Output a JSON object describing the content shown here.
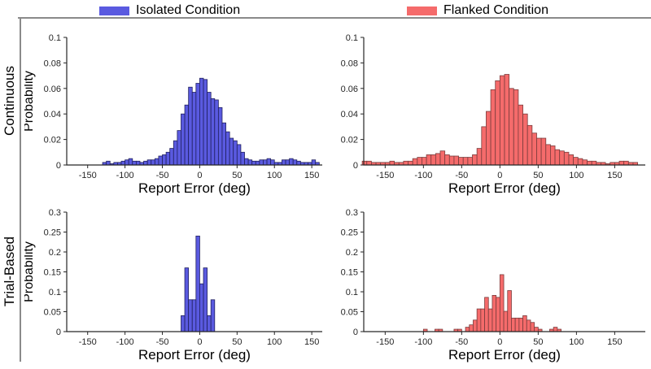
{
  "legend": {
    "items": [
      {
        "label": "Isolated Condition",
        "color": "#5a5ae0"
      },
      {
        "label": "Flanked Condition",
        "color": "#f56b6b"
      }
    ]
  },
  "row_labels": {
    "top": "Continuous",
    "bottom": "Trial-Based"
  },
  "axis_color": "#262626",
  "chart_data": [
    {
      "type": "bar",
      "row": "Continuous",
      "condition": "Isolated Condition",
      "xlabel": "Report Error (deg)",
      "ylabel": "Probability",
      "xlim": [
        -178,
        164
      ],
      "ylim": [
        0,
        0.1
      ],
      "xticks": [
        -150,
        -100,
        -50,
        0,
        50,
        100,
        150
      ],
      "yticks": [
        0,
        0.02,
        0.04,
        0.06,
        0.08,
        0.1
      ],
      "grid": false,
      "bar_color": "#5a5ae0",
      "edge_color": "#20205f",
      "bin_width": 5,
      "bins": [
        [
          -127.5,
          0.002
        ],
        [
          -122.5,
          0.003
        ],
        [
          -117.5,
          0.001
        ],
        [
          -112.5,
          0.002
        ],
        [
          -107.5,
          0.002
        ],
        [
          -102.5,
          0.003
        ],
        [
          -97.5,
          0.004
        ],
        [
          -92.5,
          0.005
        ],
        [
          -87.5,
          0.003
        ],
        [
          -82.5,
          0.003
        ],
        [
          -77.5,
          0.002
        ],
        [
          -72.5,
          0.003
        ],
        [
          -67.5,
          0.004
        ],
        [
          -62.5,
          0.004
        ],
        [
          -57.5,
          0.005
        ],
        [
          -52.5,
          0.007
        ],
        [
          -47.5,
          0.008
        ],
        [
          -42.5,
          0.01
        ],
        [
          -37.5,
          0.013
        ],
        [
          -32.5,
          0.019
        ],
        [
          -27.5,
          0.027
        ],
        [
          -22.5,
          0.04
        ],
        [
          -17.5,
          0.047
        ],
        [
          -12.5,
          0.061
        ],
        [
          -7.5,
          0.057
        ],
        [
          -2.5,
          0.064
        ],
        [
          2.5,
          0.068
        ],
        [
          7.5,
          0.067
        ],
        [
          12.5,
          0.057
        ],
        [
          17.5,
          0.052
        ],
        [
          22.5,
          0.051
        ],
        [
          27.5,
          0.045
        ],
        [
          32.5,
          0.033
        ],
        [
          37.5,
          0.026
        ],
        [
          42.5,
          0.021
        ],
        [
          47.5,
          0.019
        ],
        [
          52.5,
          0.016
        ],
        [
          57.5,
          0.01
        ],
        [
          62.5,
          0.005
        ],
        [
          67.5,
          0.004
        ],
        [
          72.5,
          0.003
        ],
        [
          77.5,
          0.003
        ],
        [
          82.5,
          0.004
        ],
        [
          87.5,
          0.004
        ],
        [
          92.5,
          0.005
        ],
        [
          97.5,
          0.004
        ],
        [
          102.5,
          0.002
        ],
        [
          107.5,
          0.002
        ],
        [
          112.5,
          0.004
        ],
        [
          117.5,
          0.004
        ],
        [
          122.5,
          0.005
        ],
        [
          127.5,
          0.004
        ],
        [
          132.5,
          0.003
        ],
        [
          137.5,
          0.002
        ],
        [
          142.5,
          0.002
        ],
        [
          147.5,
          0.002
        ],
        [
          152.5,
          0.004
        ],
        [
          157.5,
          0.002
        ]
      ]
    },
    {
      "type": "bar",
      "row": "Continuous",
      "condition": "Flanked Condition",
      "xlabel": "Report Error (deg)",
      "ylabel": "",
      "xlim": [
        -178,
        190
      ],
      "ylim": [
        0,
        0.1
      ],
      "xticks": [
        -150,
        -100,
        -50,
        0,
        50,
        100,
        150
      ],
      "yticks": [
        0,
        0.02,
        0.04,
        0.06,
        0.08,
        0.1
      ],
      "grid": false,
      "bar_color": "#f56b6b",
      "edge_color": "#7a3c3c",
      "bin_width": 6,
      "bins": [
        [
          -177,
          0.003
        ],
        [
          -171,
          0.003
        ],
        [
          -165,
          0.002
        ],
        [
          -159,
          0.002
        ],
        [
          -153,
          0.002
        ],
        [
          -147,
          0.002
        ],
        [
          -141,
          0.003
        ],
        [
          -135,
          0.002
        ],
        [
          -129,
          0.002
        ],
        [
          -123,
          0.003
        ],
        [
          -117,
          0.003
        ],
        [
          -111,
          0.005
        ],
        [
          -105,
          0.006
        ],
        [
          -99,
          0.006
        ],
        [
          -93,
          0.008
        ],
        [
          -87,
          0.008
        ],
        [
          -81,
          0.009
        ],
        [
          -75,
          0.011
        ],
        [
          -69,
          0.008
        ],
        [
          -63,
          0.007
        ],
        [
          -57,
          0.007
        ],
        [
          -51,
          0.006
        ],
        [
          -45,
          0.006
        ],
        [
          -39,
          0.006
        ],
        [
          -33,
          0.008
        ],
        [
          -27,
          0.013
        ],
        [
          -21,
          0.03
        ],
        [
          -15,
          0.042
        ],
        [
          -9,
          0.059
        ],
        [
          -3,
          0.066
        ],
        [
          3,
          0.07
        ],
        [
          9,
          0.071
        ],
        [
          15,
          0.06
        ],
        [
          21,
          0.059
        ],
        [
          27,
          0.047
        ],
        [
          33,
          0.04
        ],
        [
          39,
          0.031
        ],
        [
          45,
          0.025
        ],
        [
          51,
          0.021
        ],
        [
          57,
          0.021
        ],
        [
          63,
          0.016
        ],
        [
          69,
          0.015
        ],
        [
          75,
          0.012
        ],
        [
          81,
          0.011
        ],
        [
          87,
          0.01
        ],
        [
          93,
          0.008
        ],
        [
          99,
          0.006
        ],
        [
          105,
          0.005
        ],
        [
          111,
          0.004
        ],
        [
          117,
          0.003
        ],
        [
          123,
          0.003
        ],
        [
          129,
          0.002
        ],
        [
          135,
          0.002
        ],
        [
          141,
          0.001
        ],
        [
          147,
          0.002
        ],
        [
          153,
          0.002
        ],
        [
          159,
          0.003
        ],
        [
          165,
          0.003
        ],
        [
          171,
          0.002
        ],
        [
          177,
          0.002
        ]
      ]
    },
    {
      "type": "bar",
      "row": "Trial-Based",
      "condition": "Isolated Condition",
      "xlabel": "Report Error (deg)",
      "ylabel": "Probability",
      "xlim": [
        -178,
        164
      ],
      "ylim": [
        0,
        0.3
      ],
      "xticks": [
        -150,
        -100,
        -50,
        0,
        50,
        100,
        150
      ],
      "yticks": [
        0,
        0.05,
        0.1,
        0.15,
        0.2,
        0.25,
        0.3
      ],
      "grid": false,
      "bar_color": "#5a5ae0",
      "edge_color": "#20205f",
      "bin_width": 5,
      "bins": [
        [
          -22.5,
          0.04
        ],
        [
          -17.5,
          0.16
        ],
        [
          -12.5,
          0.08
        ],
        [
          -7.5,
          0.08
        ],
        [
          -2.5,
          0.24
        ],
        [
          2.5,
          0.12
        ],
        [
          7.5,
          0.16
        ],
        [
          12.5,
          0.04
        ],
        [
          17.5,
          0.08
        ]
      ]
    },
    {
      "type": "bar",
      "row": "Trial-Based",
      "condition": "Flanked Condition",
      "xlabel": "Report Error (deg)",
      "ylabel": "",
      "xlim": [
        -178,
        190
      ],
      "ylim": [
        0,
        0.3
      ],
      "xticks": [
        -150,
        -100,
        -50,
        0,
        50,
        100,
        150
      ],
      "yticks": [
        0,
        0.05,
        0.1,
        0.15,
        0.2,
        0.25,
        0.3
      ],
      "grid": false,
      "bar_color": "#f56b6b",
      "edge_color": "#7a3c3c",
      "bin_width": 5,
      "bins": [
        [
          -97.5,
          0.006
        ],
        [
          -82.5,
          0.006
        ],
        [
          -77.5,
          0.006
        ],
        [
          -57.5,
          0.006
        ],
        [
          -52.5,
          0.006
        ],
        [
          -42.5,
          0.011
        ],
        [
          -37.5,
          0.017
        ],
        [
          -32.5,
          0.029
        ],
        [
          -27.5,
          0.057
        ],
        [
          -22.5,
          0.057
        ],
        [
          -17.5,
          0.086
        ],
        [
          -12.5,
          0.057
        ],
        [
          -7.5,
          0.091
        ],
        [
          -2.5,
          0.086
        ],
        [
          2.5,
          0.143
        ],
        [
          7.5,
          0.051
        ],
        [
          12.5,
          0.103
        ],
        [
          17.5,
          0.034
        ],
        [
          22.5,
          0.034
        ],
        [
          27.5,
          0.034
        ],
        [
          32.5,
          0.04
        ],
        [
          37.5,
          0.029
        ],
        [
          42.5,
          0.023
        ],
        [
          47.5,
          0.011
        ],
        [
          52.5,
          0.006
        ],
        [
          67.5,
          0.006
        ],
        [
          72.5,
          0.011
        ],
        [
          77.5,
          0.006
        ]
      ]
    }
  ]
}
